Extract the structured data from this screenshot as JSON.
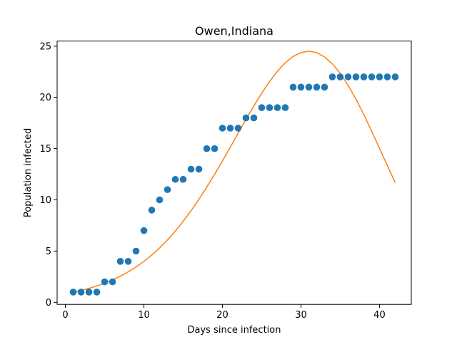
{
  "chart_data": {
    "type": "scatter",
    "title": "Owen,Indiana",
    "xlabel": "Days since infection",
    "ylabel": "Population infected",
    "xlim": [
      -1.05,
      44.05
    ],
    "ylim": [
      -0.2,
      25.5
    ],
    "xticks": [
      0,
      10,
      20,
      30,
      40
    ],
    "yticks": [
      0,
      5,
      10,
      15,
      20,
      25
    ],
    "grid": false,
    "series": [
      {
        "kind": "scatter",
        "color": "#1f77b4",
        "x": [
          1,
          2,
          3,
          4,
          5,
          6,
          7,
          8,
          9,
          10,
          11,
          12,
          13,
          14,
          15,
          16,
          17,
          18,
          19,
          20,
          21,
          22,
          23,
          24,
          25,
          26,
          27,
          28,
          29,
          30,
          31,
          32,
          33,
          34,
          35,
          36,
          37,
          38,
          39,
          40,
          41,
          42
        ],
        "y": [
          1,
          1,
          1,
          1,
          2,
          2,
          4,
          4,
          5,
          7,
          9,
          10,
          11,
          12,
          12,
          13,
          13,
          15,
          15,
          17,
          17,
          17,
          18,
          18,
          19,
          19,
          19,
          19,
          21,
          21,
          21,
          21,
          21,
          22,
          22,
          22,
          22,
          22,
          22,
          22,
          22,
          22
        ]
      },
      {
        "kind": "line",
        "color": "#ff7f0e",
        "x": [
          1,
          2,
          3,
          4,
          5,
          6,
          7,
          8,
          9,
          10,
          11,
          12,
          13,
          14,
          15,
          16,
          17,
          18,
          19,
          20,
          21,
          22,
          23,
          24,
          25,
          26,
          27,
          28,
          29,
          30,
          31,
          32,
          33,
          34,
          35,
          36,
          37,
          38,
          39,
          40,
          41,
          42
        ],
        "y": [
          1.0,
          1.17,
          1.36,
          1.6,
          1.87,
          2.18,
          2.55,
          2.97,
          3.45,
          3.99,
          4.61,
          5.31,
          6.09,
          6.95,
          7.9,
          8.94,
          10.05,
          11.24,
          12.49,
          13.8,
          15.14,
          16.5,
          17.85,
          19.16,
          20.41,
          21.55,
          22.55,
          23.38,
          24.0,
          24.38,
          24.51,
          24.37,
          23.95,
          23.27,
          22.34,
          21.18,
          19.83,
          18.33,
          16.71,
          15.03,
          13.34,
          11.68
        ]
      }
    ]
  }
}
